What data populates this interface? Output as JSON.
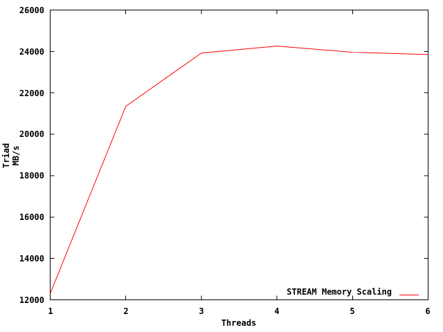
{
  "chart_data": {
    "type": "line",
    "title": "",
    "xlabel": "Threads",
    "ylabel": "Triad MB/s",
    "x": [
      1,
      2,
      3,
      4,
      5,
      6
    ],
    "series": [
      {
        "name": "STREAM Memory Scaling",
        "color": "#ff0000",
        "values": [
          12300,
          21350,
          23920,
          24260,
          23960,
          23850
        ]
      }
    ],
    "xlim": [
      1,
      6
    ],
    "ylim": [
      12000,
      26000
    ],
    "xticks": [
      1,
      2,
      3,
      4,
      5,
      6
    ],
    "yticks": [
      12000,
      14000,
      16000,
      18000,
      20000,
      22000,
      24000,
      26000
    ],
    "xtick_labels": [
      "1",
      "2",
      "3",
      "4",
      "5",
      "6"
    ],
    "ytick_labels_top_to_bottom": [
      "26000",
      "24000",
      "22000",
      "20000",
      "18000",
      "16000",
      "14000",
      "12000"
    ],
    "grid": false,
    "legend_position": "bottom-right-inside",
    "line_color": "#ff0000",
    "axis_color": "#000000",
    "background_color": "#ffffff"
  }
}
